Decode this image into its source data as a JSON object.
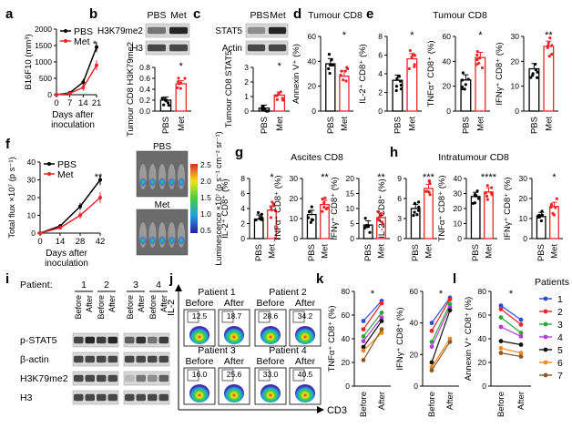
{
  "panel_labels": [
    "a",
    "b",
    "c",
    "d",
    "e",
    "f",
    "g",
    "h",
    "i",
    "j",
    "k",
    "l"
  ],
  "colors": {
    "pbs": "#000000",
    "met": "#e8262b",
    "blot_dark": "#1a1a1a"
  },
  "chart_data": [
    {
      "id": "a",
      "type": "line",
      "ylabel": "B16F10 (mm³)",
      "xlabel": "Days after inoculation",
      "x": [
        0,
        7,
        14,
        21
      ],
      "xticks": [
        "0",
        "7",
        "14",
        "21"
      ],
      "yticks": [
        "0",
        "500",
        "1000",
        "1500",
        "2000"
      ],
      "ylim": [
        0,
        2000
      ],
      "legend": [
        "PBS",
        "Met"
      ],
      "significance": "*",
      "series": [
        {
          "name": "PBS",
          "values": [
            0,
            60,
            380,
            1450
          ]
        },
        {
          "name": "Met",
          "values": [
            0,
            40,
            220,
            900
          ]
        }
      ]
    },
    {
      "id": "b",
      "type": "bar",
      "ylabel": "Tumour CD8 H3K79me2",
      "categories": [
        "PBS",
        "Met"
      ],
      "values": [
        0.2,
        0.5
      ],
      "yticks": [
        "0.0",
        "0.2",
        "0.4",
        "0.6",
        "0.8"
      ],
      "ylim": [
        0,
        0.8
      ],
      "significance": "*",
      "blot": {
        "columns": [
          "PBS",
          "Met"
        ],
        "rows": [
          "H3K79me2",
          "H3"
        ]
      }
    },
    {
      "id": "c",
      "type": "bar",
      "ylabel": "Tumour CD8 STAT5",
      "categories": [
        "PBS",
        "Met"
      ],
      "values": [
        0.2,
        1.1
      ],
      "yticks": [
        "0",
        "1",
        "2",
        "3"
      ],
      "ylim": [
        0,
        3
      ],
      "significance": "*",
      "blot": {
        "columns": [
          "PBS",
          "Met"
        ],
        "rows": [
          "STAT5",
          "Actin"
        ]
      }
    },
    {
      "id": "d",
      "type": "bar",
      "title": "Tumour CD8",
      "ylabel": "Annexin V⁺ (%)",
      "categories": [
        "PBS",
        "Met"
      ],
      "values": [
        38,
        28
      ],
      "yticks": [
        "0",
        "20",
        "40",
        "60"
      ],
      "ylim": [
        0,
        60
      ],
      "significance": "*"
    },
    {
      "id": "e",
      "title": "Tumour CD8",
      "subcharts": [
        {
          "type": "bar",
          "ylabel": "IL-2⁺ CD8⁺ (%)",
          "categories": [
            "PBS",
            "Met"
          ],
          "values": [
            3.3,
            5.6
          ],
          "yticks": [
            "0",
            "2",
            "4",
            "6",
            "8"
          ],
          "ylim": [
            0,
            8
          ],
          "significance": "*"
        },
        {
          "type": "bar",
          "ylabel": "TNFα⁺ CD8⁺ (%)",
          "categories": [
            "PBS",
            "Met"
          ],
          "values": [
            25,
            43
          ],
          "yticks": [
            "0",
            "20",
            "40",
            "60"
          ],
          "ylim": [
            0,
            60
          ],
          "significance": "*"
        },
        {
          "type": "bar",
          "ylabel": "IFNγ⁺ CD8⁺ (%)",
          "categories": [
            "PBS",
            "Met"
          ],
          "values": [
            17,
            26
          ],
          "yticks": [
            "0",
            "10",
            "20",
            "30"
          ],
          "ylim": [
            0,
            30
          ],
          "significance": "**"
        }
      ]
    },
    {
      "id": "f",
      "type": "line",
      "ylabel": "Total flux ×10⁷ (p s⁻¹)",
      "xlabel": "Days after inoculation",
      "x": [
        0,
        14,
        28,
        42
      ],
      "xticks": [
        "0",
        "14",
        "28",
        "42"
      ],
      "yticks": [
        "0",
        "10",
        "20",
        "30",
        "40"
      ],
      "ylim": [
        0,
        40
      ],
      "legend": [
        "PBS",
        "Met"
      ],
      "significance": "**",
      "series": [
        {
          "name": "PBS",
          "values": [
            0,
            4,
            15,
            30
          ]
        },
        {
          "name": "Met",
          "values": [
            0,
            3,
            10,
            20
          ]
        }
      ],
      "images": [
        "PBS",
        "Met"
      ],
      "colorbar": {
        "label": "Luminescence ×10⁷ (p s⁻¹ cm⁻² sr⁻¹)",
        "ticks": [
          "2.5",
          "2.0",
          "1.5",
          "1.0",
          "0.5"
        ]
      }
    },
    {
      "id": "g",
      "title": "Ascites CD8",
      "subcharts": [
        {
          "type": "bar",
          "ylabel": "IL-2⁺ CD8⁺ (%)",
          "categories": [
            "PBS",
            "Met"
          ],
          "values": [
            2.6,
            3.8
          ],
          "yticks": [
            "0",
            "2",
            "4",
            "6",
            "8"
          ],
          "ylim": [
            0,
            8
          ],
          "significance": "*"
        },
        {
          "type": "bar",
          "ylabel": "TNFα⁺ CD8⁺ (%)",
          "categories": [
            "PBS",
            "Met"
          ],
          "values": [
            12,
            17
          ],
          "yticks": [
            "0",
            "10",
            "20",
            "30"
          ],
          "ylim": [
            0,
            30
          ],
          "significance": "**"
        },
        {
          "type": "bar",
          "ylabel": "IFNγ⁺ CD8⁺ (%)",
          "categories": [
            "PBS",
            "Met"
          ],
          "values": [
            4.5,
            7
          ],
          "yticks": [
            "0",
            "5",
            "10",
            "15",
            "20"
          ],
          "ylim": [
            0,
            20
          ],
          "significance": "**"
        }
      ]
    },
    {
      "id": "h",
      "title": "Intratumour CD8",
      "subcharts": [
        {
          "type": "bar",
          "ylabel": "IL-2⁺ CD8⁺ (%)",
          "categories": [
            "PBS",
            "Met"
          ],
          "values": [
            4.5,
            7.5
          ],
          "yticks": [
            "0",
            "3",
            "6",
            "9"
          ],
          "ylim": [
            0,
            9
          ],
          "significance": "***"
        },
        {
          "type": "bar",
          "ylabel": "TNFα⁺ CD8⁺ (%)",
          "categories": [
            "PBS",
            "Met"
          ],
          "values": [
            28,
            31
          ],
          "yticks": [
            "0",
            "10",
            "20",
            "30",
            "40"
          ],
          "ylim": [
            0,
            40
          ],
          "significance": "****"
        },
        {
          "type": "bar",
          "ylabel": "IFNγ⁺ CD8⁺ (%)",
          "categories": [
            "PBS",
            "Met"
          ],
          "values": [
            11,
            16
          ],
          "yticks": [
            "0",
            "10",
            "20",
            "30"
          ],
          "ylim": [
            0,
            30
          ],
          "significance": "*"
        }
      ]
    },
    {
      "id": "i",
      "type": "blot",
      "patient_label": "Patient:",
      "patients": [
        "1",
        "2",
        "3",
        "4"
      ],
      "columns": [
        "Before",
        "After"
      ],
      "rows": [
        "p-STAT5",
        "β-actin",
        "H3K79me2",
        "H3"
      ]
    },
    {
      "id": "j",
      "type": "flow",
      "xlabel": "CD3",
      "ylabel": "IL-2",
      "columns": [
        "Before",
        "After"
      ],
      "patients": [
        {
          "name": "Patient 1",
          "values": [
            "12.5",
            "18.7"
          ]
        },
        {
          "name": "Patient 2",
          "values": [
            "28.6",
            "34.2"
          ]
        },
        {
          "name": "Patient 3",
          "values": [
            "16.0",
            "25.6"
          ]
        },
        {
          "name": "Patient 4",
          "values": [
            "33.0",
            "40.5"
          ]
        }
      ]
    },
    {
      "id": "k",
      "type": "paired",
      "categories": [
        "Before",
        "After"
      ],
      "subcharts": [
        {
          "ylabel": "TNFα⁺ CD8⁺ (%)",
          "yticks": [
            "0",
            "20",
            "40",
            "60",
            "80"
          ],
          "ylim": [
            0,
            80
          ],
          "significance": "*",
          "pairs": [
            [
              55,
              72
            ],
            [
              48,
              70
            ],
            [
              42,
              62
            ],
            [
              38,
              58
            ],
            [
              33,
              55
            ],
            [
              30,
              45
            ],
            [
              22,
              48
            ]
          ]
        },
        {
          "ylabel": "IFNγ⁺ CD8⁺ (%)",
          "yticks": [
            "0",
            "20",
            "40",
            "60"
          ],
          "ylim": [
            0,
            60
          ],
          "significance": "*",
          "pairs": [
            [
              40,
              56
            ],
            [
              35,
              55
            ],
            [
              28,
              52
            ],
            [
              25,
              50
            ],
            [
              15,
              48
            ],
            [
              12,
              30
            ],
            [
              10,
              28
            ]
          ]
        }
      ]
    },
    {
      "id": "l",
      "type": "paired",
      "ylabel": "Annexin V⁺ CD8⁺ (%)",
      "categories": [
        "Before",
        "After"
      ],
      "yticks": [
        "0",
        "20",
        "40",
        "60",
        "80"
      ],
      "ylim": [
        0,
        80
      ],
      "significance": "*",
      "pairs": [
        [
          68,
          56
        ],
        [
          65,
          52
        ],
        [
          58,
          45
        ],
        [
          50,
          42
        ],
        [
          38,
          35
        ],
        [
          32,
          28
        ],
        [
          28,
          25
        ]
      ],
      "legend_title": "Patients",
      "legend": [
        "1",
        "2",
        "3",
        "4",
        "5",
        "6",
        "7"
      ],
      "legend_colors": [
        "#2b4ad8",
        "#e8262b",
        "#2aa63a",
        "#b63cd6",
        "#111111",
        "#f08a1c",
        "#8a5a2b"
      ]
    }
  ]
}
